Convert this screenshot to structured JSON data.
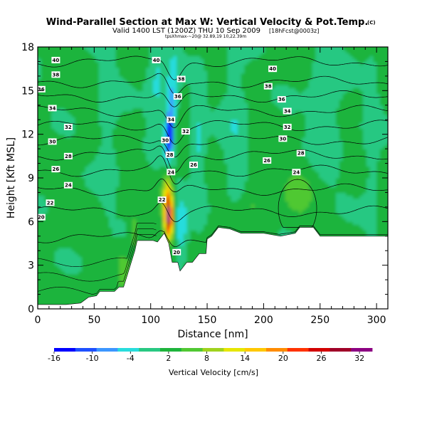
{
  "chart_data": {
    "type": "heatmap",
    "title": "Wind-Parallel Section at Max W: Vertical Velocity & Pot.Temp.",
    "title_mark": "(C)",
    "subtitle_main": "Valid 1400 LST (1200Z) THU 10 Sep 2009",
    "subtitle_fcst": "[18hFcst@0003z]",
    "subtitle_small": "tpsXhmax-~20@ 32.89,19 10,22.39m",
    "xlabel": "Distance [nm]",
    "ylabel": "Height [Kft MSL]",
    "xlim": [
      0,
      310
    ],
    "ylim": [
      0,
      18
    ],
    "x_ticks": [
      0,
      50,
      100,
      150,
      200,
      250,
      300
    ],
    "y_ticks": [
      0,
      3,
      6,
      9,
      12,
      15,
      18
    ],
    "colorbar": {
      "label": "Vertical Velocity [cm/s]",
      "tick_labels": [
        "-16",
        "-10",
        "-4",
        "2",
        "8",
        "14",
        "20",
        "26",
        "32"
      ],
      "tick_values": [
        -16,
        -10,
        -4,
        2,
        8,
        14,
        20,
        26,
        32
      ],
      "range": [
        -16,
        34
      ],
      "colors": [
        "#0000ff",
        "#1e50ff",
        "#3c96ff",
        "#28dcdc",
        "#28c882",
        "#1eb43c",
        "#50c832",
        "#a0d21e",
        "#e6e600",
        "#ffc800",
        "#ff8c00",
        "#ff3200",
        "#d20000",
        "#a00028",
        "#8c0082"
      ]
    },
    "theta_contours": [
      {
        "label": "20",
        "base_height": 4.9
      },
      {
        "label": "22",
        "base_height": 6.7
      },
      {
        "label": "24",
        "base_height": 8.2
      },
      {
        "label": "26",
        "base_height": 9.5
      },
      {
        "label": "28",
        "base_height": 10.6
      },
      {
        "label": "30",
        "base_height": 11.6
      },
      {
        "label": "32",
        "base_height": 12.6
      },
      {
        "label": "34",
        "base_height": 13.6
      },
      {
        "label": "36",
        "base_height": 14.6
      },
      {
        "label": "38",
        "base_height": 15.6
      },
      {
        "label": "40",
        "base_height": 17.0
      }
    ],
    "contour_labels": [
      {
        "text": "40",
        "x": 16,
        "y": 17.1
      },
      {
        "text": "40",
        "x": 105,
        "y": 17.1
      },
      {
        "text": "40",
        "x": 208,
        "y": 16.5
      },
      {
        "text": "38",
        "x": 16,
        "y": 16.1
      },
      {
        "text": "38",
        "x": 127,
        "y": 15.8
      },
      {
        "text": "38",
        "x": 204,
        "y": 15.3
      },
      {
        "text": "36",
        "x": 3,
        "y": 15.1
      },
      {
        "text": "36",
        "x": 124,
        "y": 14.6
      },
      {
        "text": "36",
        "x": 216,
        "y": 14.4
      },
      {
        "text": "34",
        "x": 13,
        "y": 13.8
      },
      {
        "text": "34",
        "x": 118,
        "y": 13.0
      },
      {
        "text": "34",
        "x": 221,
        "y": 13.6
      },
      {
        "text": "32",
        "x": 27,
        "y": 12.5
      },
      {
        "text": "32",
        "x": 131,
        "y": 12.2
      },
      {
        "text": "32",
        "x": 221,
        "y": 12.5
      },
      {
        "text": "30",
        "x": 13,
        "y": 11.5
      },
      {
        "text": "30",
        "x": 113,
        "y": 11.6
      },
      {
        "text": "30",
        "x": 217,
        "y": 11.7
      },
      {
        "text": "28",
        "x": 27,
        "y": 10.5
      },
      {
        "text": "28",
        "x": 117,
        "y": 10.6
      },
      {
        "text": "28",
        "x": 233,
        "y": 10.7
      },
      {
        "text": "26",
        "x": 16,
        "y": 9.6
      },
      {
        "text": "26",
        "x": 138,
        "y": 9.9
      },
      {
        "text": "26",
        "x": 203,
        "y": 10.2
      },
      {
        "text": "24",
        "x": 27,
        "y": 8.5
      },
      {
        "text": "24",
        "x": 118,
        "y": 9.4
      },
      {
        "text": "24",
        "x": 229,
        "y": 9.4
      },
      {
        "text": "22",
        "x": 11,
        "y": 7.3
      },
      {
        "text": "22",
        "x": 110,
        "y": 7.5
      },
      {
        "text": "20",
        "x": 3,
        "y": 6.3
      },
      {
        "text": "20",
        "x": 123,
        "y": 3.9
      }
    ]
  }
}
